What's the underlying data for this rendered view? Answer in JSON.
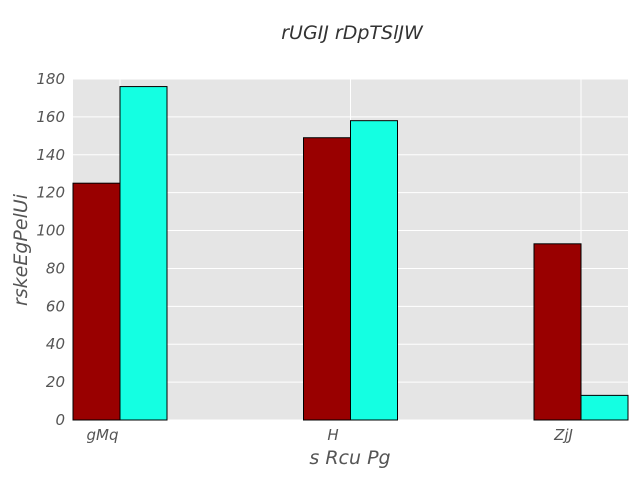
{
  "chart_data": {
    "type": "bar",
    "title": "rUGIJ rDpTSlJW",
    "xlabel": "s Rcu Pg",
    "ylabel": "rskeEgPelUi",
    "categories": [
      "gMq",
      "H",
      "ZjJ"
    ],
    "series": [
      {
        "color": "#990000",
        "values": [
          125,
          149,
          93
        ]
      },
      {
        "color": "#14ffe2",
        "values": [
          176,
          158,
          13
        ]
      }
    ],
    "ylim": [
      0,
      180
    ],
    "yticks": [
      0,
      20,
      40,
      60,
      80,
      100,
      120,
      140,
      160,
      180
    ],
    "grid": true,
    "legend": "none",
    "plot_background": "#e5e5e5",
    "grid_color": "#ffffff",
    "bar_edge_color": "#000000"
  }
}
